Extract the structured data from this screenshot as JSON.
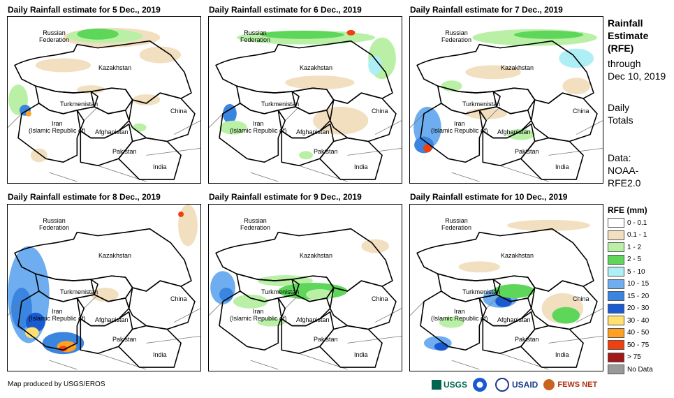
{
  "panels": [
    {
      "title": "Daily Rainfall estimate for 5 Dec., 2019"
    },
    {
      "title": "Daily Rainfall estimate for 6 Dec., 2019"
    },
    {
      "title": "Daily Rainfall estimate for 7 Dec., 2019"
    },
    {
      "title": "Daily Rainfall estimate for 8 Dec., 2019"
    },
    {
      "title": "Daily Rainfall estimate for 9 Dec., 2019"
    },
    {
      "title": "Daily Rainfall estimate for 10 Dec., 2019"
    }
  ],
  "country_labels": {
    "russia": "Russian\nFederation",
    "kazakhstan": "Kazakhstan",
    "turkmenistan": "Turkmenistan",
    "iran": "Iran\n(Islamic Republic of)",
    "afghanistan": "Afghanistan",
    "pakistan": "Pakistan",
    "china": "China",
    "india": "India"
  },
  "sidebar": {
    "line1": "Rainfall",
    "line2": "Estimate",
    "line3": "(RFE)",
    "line4": "through",
    "line5": "Dec 10, 2019",
    "line6": "Daily",
    "line7": "Totals",
    "line8": "Data:",
    "line9": "NOAA-",
    "line10": "RFE2.0"
  },
  "legend": {
    "title": "RFE (mm)",
    "items": [
      {
        "label": "0 - 0.1",
        "color": "#ffffff"
      },
      {
        "label": "0.1 - 1",
        "color": "#f2dfc0"
      },
      {
        "label": "1 - 2",
        "color": "#b9f0a6"
      },
      {
        "label": "2 - 5",
        "color": "#5ed65a"
      },
      {
        "label": "5 - 10",
        "color": "#aeeef5"
      },
      {
        "label": "10 - 15",
        "color": "#6eaef0"
      },
      {
        "label": "15 - 20",
        "color": "#3a85e0"
      },
      {
        "label": "20 - 30",
        "color": "#1a5ad0"
      },
      {
        "label": "30 - 40",
        "color": "#ffe070"
      },
      {
        "label": "40 - 50",
        "color": "#ffa020"
      },
      {
        "label": "50 - 75",
        "color": "#f04010"
      },
      {
        "label": "> 75",
        "color": "#a01818"
      },
      {
        "label": "No Data",
        "color": "#999999"
      }
    ]
  },
  "footer": "Map produced by USGS/EROS",
  "logos": {
    "usgs": "USGS",
    "usaid": "USAID",
    "fewsnet": "FEWS NET"
  }
}
